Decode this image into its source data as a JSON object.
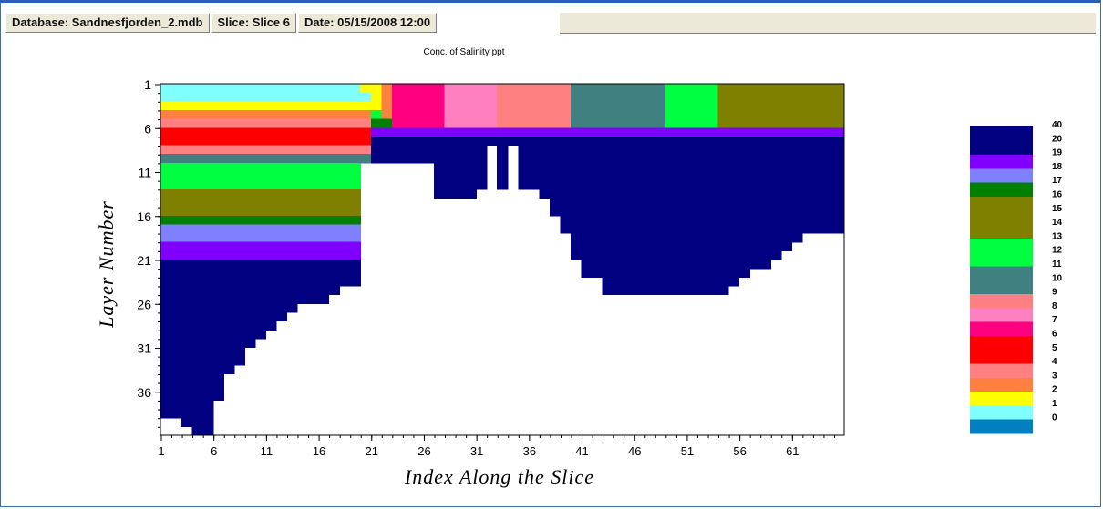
{
  "status_bar": {
    "database": "Database: Sandnesfjorden_2.mdb",
    "slice": "Slice: Slice 6",
    "date": "Date: 05/15/2008 12:00"
  },
  "colors": {
    "window_border": "#2b5fb4",
    "deep_water": "#000080"
  },
  "chart_data": {
    "type": "heatmap",
    "title": "Conc. of Salinity ppt",
    "xlabel": "Index Along the Slice",
    "ylabel": "Layer Number",
    "x_ticks": [
      "1",
      "6",
      "11",
      "16",
      "21",
      "26",
      "31",
      "36",
      "41",
      "46",
      "51",
      "56",
      "61"
    ],
    "y_ticks": [
      "1",
      "6",
      "11",
      "16",
      "21",
      "26",
      "31",
      "36"
    ],
    "xlim": [
      1,
      65
    ],
    "ylim": [
      1,
      40
    ],
    "y_inverted": true,
    "legend_position": "right",
    "legend": [
      {
        "label": "40",
        "color": "#000080"
      },
      {
        "label": "20",
        "color": "#000080"
      },
      {
        "label": "19",
        "color": "#8000ff"
      },
      {
        "label": "18",
        "color": "#8080ff"
      },
      {
        "label": "17",
        "color": "#008000"
      },
      {
        "label": "16",
        "color": "#808000"
      },
      {
        "label": "15",
        "color": "#808000"
      },
      {
        "label": "14",
        "color": "#808000"
      },
      {
        "label": "13",
        "color": "#00ff40"
      },
      {
        "label": "12",
        "color": "#00ff40"
      },
      {
        "label": "11",
        "color": "#408080"
      },
      {
        "label": "10",
        "color": "#408080"
      },
      {
        "label": "9",
        "color": "#ff8080"
      },
      {
        "label": "8",
        "color": "#ff80c0"
      },
      {
        "label": "7",
        "color": "#ff0080"
      },
      {
        "label": "6",
        "color": "#ff0000"
      },
      {
        "label": "5",
        "color": "#ff0000"
      },
      {
        "label": "4",
        "color": "#ff8080"
      },
      {
        "label": "3",
        "color": "#ff8040"
      },
      {
        "label": "2",
        "color": "#ffff00"
      },
      {
        "label": "1",
        "color": "#80ffff"
      },
      {
        "label": "0",
        "color": "#0080c0"
      }
    ],
    "bottom_layer": [
      38,
      38,
      39,
      40,
      40,
      36,
      33,
      32,
      30,
      29,
      28,
      27,
      26,
      25,
      25,
      25,
      24,
      23,
      23,
      9,
      9,
      9,
      9,
      9,
      9,
      9,
      13,
      13,
      13,
      13,
      12,
      7,
      12,
      7,
      12,
      12,
      13,
      15,
      17,
      20,
      22,
      22,
      24,
      24,
      24,
      24,
      24,
      24,
      24,
      24,
      24,
      24,
      24,
      24,
      23,
      22,
      21,
      21,
      20,
      19,
      18,
      17,
      17,
      17,
      17
    ],
    "surface_layer": [
      2,
      2,
      2,
      2,
      2,
      2,
      2,
      2,
      2,
      2,
      2,
      2,
      2,
      2,
      2,
      2,
      2,
      2,
      2,
      2,
      4,
      5,
      6,
      6,
      6,
      6,
      6,
      6,
      6,
      6,
      6,
      6,
      6,
      6,
      6,
      6,
      6,
      6,
      6,
      6,
      6,
      6,
      6,
      6,
      6,
      6,
      6,
      6,
      6,
      6,
      6,
      6,
      6,
      6,
      6,
      6,
      6,
      6,
      6,
      6,
      6,
      6,
      6,
      6,
      6
    ],
    "surface_values": [
      1,
      1,
      1,
      1,
      1,
      1,
      1,
      1,
      1,
      1,
      1,
      1,
      1,
      1,
      1,
      1,
      1,
      1,
      1,
      2,
      2,
      3,
      7,
      7,
      7,
      7,
      7,
      8,
      8,
      8,
      8,
      8,
      9,
      9,
      9,
      9,
      9,
      9,
      9,
      10,
      10,
      10,
      10,
      10,
      10,
      10,
      10,
      10,
      13,
      13,
      13,
      13,
      13,
      14,
      14,
      14,
      14,
      14,
      14,
      14,
      14,
      14,
      14,
      14,
      14
    ],
    "upper_profile_west": [
      {
        "layer_from": 1,
        "layer_to": 2,
        "value": 1
      },
      {
        "layer_from": 3,
        "layer_to": 3,
        "value": 2
      },
      {
        "layer_from": 4,
        "layer_to": 4,
        "value": 3
      },
      {
        "layer_from": 5,
        "layer_to": 5,
        "value": 4
      },
      {
        "layer_from": 6,
        "layer_to": 7,
        "value": 6
      },
      {
        "layer_from": 8,
        "layer_to": 8,
        "value": 4
      },
      {
        "layer_from": 9,
        "layer_to": 9,
        "value": 10
      },
      {
        "layer_from": 10,
        "layer_to": 12,
        "value": 12
      },
      {
        "layer_from": 13,
        "layer_to": 15,
        "value": 15
      },
      {
        "layer_from": 16,
        "layer_to": 16,
        "value": 17
      },
      {
        "layer_from": 17,
        "layer_to": 18,
        "value": 18
      },
      {
        "layer_from": 19,
        "layer_to": 20,
        "value": 19
      },
      {
        "layer_from": 21,
        "layer_to": 40,
        "value": 20
      }
    ],
    "upper_profile_east": [
      {
        "layer_from": 1,
        "layer_to": 2,
        "value": 14
      },
      {
        "layer_from": 3,
        "layer_to": 3,
        "value": 13
      },
      {
        "layer_from": 4,
        "layer_to": 4,
        "value": 12
      },
      {
        "layer_from": 5,
        "layer_to": 5,
        "value": 17
      },
      {
        "layer_from": 6,
        "layer_to": 6,
        "value": 19
      },
      {
        "layer_from": 7,
        "layer_to": 40,
        "value": 20
      }
    ]
  }
}
